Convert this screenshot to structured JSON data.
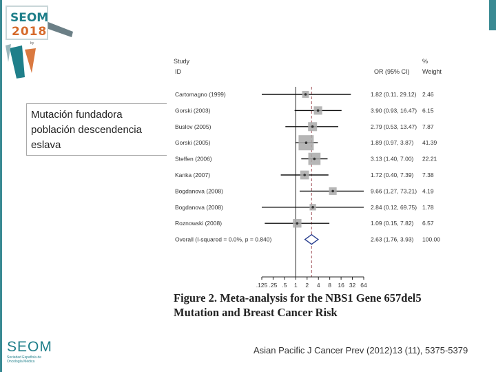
{
  "brand": {
    "event_line1": "SEOM",
    "event_line2": "2018",
    "event_small": "by",
    "society_name": "SEOM",
    "society_subtitle": "Sociedad Española de Oncología Médica",
    "accent_color": "#1f7f8a",
    "orange_color": "#d66a2b"
  },
  "callout": {
    "text": "Mutación fundadora población descendencia eslava"
  },
  "citation": "Asian Pacific J Cancer Prev (2012)13 (11), 5375-5379",
  "chart_data": {
    "type": "forest",
    "header": {
      "study_line1": "Study",
      "study_line2": "ID",
      "or_label": "OR (95% CI)",
      "weight_line1": "%",
      "weight_line2": "Weight"
    },
    "studies": [
      {
        "label": "Cartomagno (1999)",
        "or": 1.82,
        "lo": 0.11,
        "hi": 29.12,
        "ci_text": "1.82 (0.11, 29.12)",
        "weight": 2.46,
        "weight_text": "2.46"
      },
      {
        "label": "Gorski (2003)",
        "or": 3.9,
        "lo": 0.93,
        "hi": 16.47,
        "ci_text": "3.90 (0.93, 16.47)",
        "weight": 6.15,
        "weight_text": "6.15"
      },
      {
        "label": "Buslov (2005)",
        "or": 2.79,
        "lo": 0.53,
        "hi": 13.47,
        "ci_text": "2.79 (0.53, 13.47)",
        "weight": 7.87,
        "weight_text": "7.87"
      },
      {
        "label": "Gorski (2005)",
        "or": 1.89,
        "lo": 0.97,
        "hi": 3.87,
        "ci_text": "1.89 (0.97, 3.87)",
        "weight": 41.39,
        "weight_text": "41.39"
      },
      {
        "label": "Steffen (2006)",
        "or": 3.13,
        "lo": 1.4,
        "hi": 7.0,
        "ci_text": "3.13 (1.40, 7.00)",
        "weight": 22.21,
        "weight_text": "22.21"
      },
      {
        "label": "Kanka (2007)",
        "or": 1.72,
        "lo": 0.4,
        "hi": 7.39,
        "ci_text": "1.72 (0.40, 7.39)",
        "weight": 7.38,
        "weight_text": "7.38"
      },
      {
        "label": "Bogdanova (2008)",
        "or": 9.66,
        "lo": 1.27,
        "hi": 73.21,
        "ci_text": "9.66 (1.27, 73.21)",
        "weight": 4.19,
        "weight_text": "4.19"
      },
      {
        "label": "Bogdanova (2008)",
        "or": 2.84,
        "lo": 0.12,
        "hi": 69.75,
        "ci_text": "2.84 (0.12, 69.75)",
        "weight": 1.78,
        "weight_text": "1.78"
      },
      {
        "label": "Roznowski (2008)",
        "or": 1.09,
        "lo": 0.15,
        "hi": 7.82,
        "ci_text": "1.09 (0.15, 7.82)",
        "weight": 6.57,
        "weight_text": "6.57"
      }
    ],
    "overall": {
      "label": "Overall (I-squared = 0.0%, p = 0.840)",
      "or": 2.63,
      "lo": 1.76,
      "hi": 3.93,
      "ci_text": "2.63 (1.76, 3.93)",
      "weight_text": "100.00"
    },
    "x_ticks": [
      0.125,
      0.25,
      0.5,
      1,
      2,
      4,
      8,
      16,
      32,
      64
    ],
    "x_tick_labels": [
      ".125",
      ".25",
      ".5",
      "1",
      "2",
      "4",
      "8",
      "16",
      "32",
      "64"
    ],
    "x_scale": "log",
    "xlim": [
      0.125,
      64
    ],
    "caption": "Figure 2. Meta-analysis for the NBS1 Gene 657del5 Mutation and Breast Cancer Risk"
  }
}
